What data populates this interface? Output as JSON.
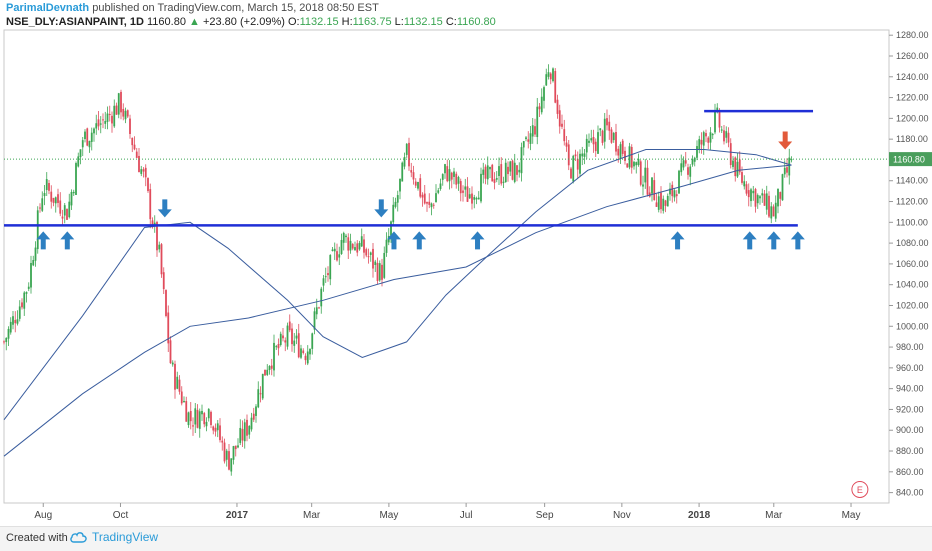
{
  "header": {
    "author": "ParimalDevnath",
    "published": "published on TradingView.com, March 15, 2018 08:50 EST",
    "symbol": "NSE_DLY:ASIANPAINT, 1D",
    "last": "1160.80",
    "change": "+23.80 (+2.09%)",
    "o_label": "O:",
    "o": "1132.15",
    "h_label": "H:",
    "h": "1163.75",
    "l_label": "L:",
    "l": "1132.15",
    "c_label": "C:",
    "c": "1160.80"
  },
  "footer": {
    "created": "Created with",
    "brand": "TradingView"
  },
  "colors": {
    "up": "#3aa552",
    "down": "#e04b5b",
    "support": "#1f2fd6",
    "ma": "#3a5d9e",
    "arrow_up": "#2d7fc1",
    "arrow_down": "#e25a3a",
    "last_price_bg": "#4a9e5c"
  },
  "chart_data": {
    "type": "candlestick",
    "x_ticks": [
      "Aug",
      "Oct",
      "2017",
      "Mar",
      "May",
      "Jul",
      "Sep",
      "Nov",
      "2018",
      "Mar",
      "May"
    ],
    "y_ticks": [
      "1280.00",
      "1260.00",
      "1240.00",
      "1220.00",
      "1200.00",
      "1180.00",
      "1160.00",
      "1140.00",
      "1120.00",
      "1100.00",
      "1080.00",
      "1060.00",
      "1040.00",
      "1020.00",
      "1000.00",
      "980.00",
      "960.00",
      "940.00",
      "920.00",
      "900.00",
      "880.00",
      "860.00",
      "840.00"
    ],
    "ylim": [
      830,
      1285
    ],
    "last_price_label": "1160.80",
    "last_price": 1160.8,
    "support_level": 1097,
    "resistance_level": 1207,
    "event_marker": "E",
    "price_path": [
      {
        "month": "2016-07-01",
        "close": 985
      },
      {
        "month": "2016-07-20",
        "close": 1040
      },
      {
        "month": "2016-08-01",
        "close": 1135
      },
      {
        "month": "2016-08-20",
        "close": 1110
      },
      {
        "month": "2016-09-01",
        "close": 1180
      },
      {
        "month": "2016-09-20",
        "close": 1200
      },
      {
        "month": "2016-10-01",
        "close": 1215
      },
      {
        "month": "2016-10-20",
        "close": 1140
      },
      {
        "month": "2016-11-01",
        "close": 1065
      },
      {
        "month": "2016-11-10",
        "close": 960
      },
      {
        "month": "2016-11-25",
        "close": 910
      },
      {
        "month": "2016-12-10",
        "close": 920
      },
      {
        "month": "2016-12-25",
        "close": 870
      },
      {
        "month": "2017-01-10",
        "close": 905
      },
      {
        "month": "2017-01-25",
        "close": 965
      },
      {
        "month": "2017-02-10",
        "close": 990
      },
      {
        "month": "2017-02-25",
        "close": 975
      },
      {
        "month": "2017-03-10",
        "close": 1040
      },
      {
        "month": "2017-03-25",
        "close": 1085
      },
      {
        "month": "2017-04-10",
        "close": 1075
      },
      {
        "month": "2017-04-25",
        "close": 1050
      },
      {
        "month": "2017-05-05",
        "close": 1110
      },
      {
        "month": "2017-05-15",
        "close": 1165
      },
      {
        "month": "2017-06-01",
        "close": 1110
      },
      {
        "month": "2017-06-15",
        "close": 1150
      },
      {
        "month": "2017-07-01",
        "close": 1125
      },
      {
        "month": "2017-07-20",
        "close": 1145
      },
      {
        "month": "2017-08-10",
        "close": 1150
      },
      {
        "month": "2017-08-25",
        "close": 1195
      },
      {
        "month": "2017-09-05",
        "close": 1255
      },
      {
        "month": "2017-09-20",
        "close": 1150
      },
      {
        "month": "2017-10-05",
        "close": 1170
      },
      {
        "month": "2017-10-20",
        "close": 1190
      },
      {
        "month": "2017-11-05",
        "close": 1165
      },
      {
        "month": "2017-11-20",
        "close": 1140
      },
      {
        "month": "2017-12-05",
        "close": 1115
      },
      {
        "month": "2017-12-20",
        "close": 1150
      },
      {
        "month": "2018-01-05",
        "close": 1180
      },
      {
        "month": "2018-01-15",
        "close": 1200
      },
      {
        "month": "2018-02-01",
        "close": 1145
      },
      {
        "month": "2018-02-15",
        "close": 1125
      },
      {
        "month": "2018-03-01",
        "close": 1110
      },
      {
        "month": "2018-03-15",
        "close": 1160.8
      }
    ],
    "ma_long": [
      {
        "month": "2016-07-01",
        "value": 875
      },
      {
        "month": "2016-09-01",
        "value": 935
      },
      {
        "month": "2016-10-20",
        "value": 975
      },
      {
        "month": "2016-11-25",
        "value": 1000
      },
      {
        "month": "2017-01-10",
        "value": 1008
      },
      {
        "month": "2017-03-10",
        "value": 1025
      },
      {
        "month": "2017-05-05",
        "value": 1045
      },
      {
        "month": "2017-07-01",
        "value": 1057
      },
      {
        "month": "2017-08-25",
        "value": 1090
      },
      {
        "month": "2017-10-20",
        "value": 1115
      },
      {
        "month": "2017-12-20",
        "value": 1135
      },
      {
        "month": "2018-02-01",
        "value": 1150
      },
      {
        "month": "2018-03-15",
        "value": 1155
      }
    ],
    "ma_short": [
      {
        "month": "2016-07-01",
        "value": 910
      },
      {
        "month": "2016-09-01",
        "value": 1010
      },
      {
        "month": "2016-10-20",
        "value": 1095
      },
      {
        "month": "2016-11-25",
        "value": 1100
      },
      {
        "month": "2016-12-25",
        "value": 1075
      },
      {
        "month": "2017-02-10",
        "value": 1025
      },
      {
        "month": "2017-03-10",
        "value": 990
      },
      {
        "month": "2017-04-10",
        "value": 970
      },
      {
        "month": "2017-05-15",
        "value": 985
      },
      {
        "month": "2017-06-15",
        "value": 1030
      },
      {
        "month": "2017-07-20",
        "value": 1070
      },
      {
        "month": "2017-08-25",
        "value": 1110
      },
      {
        "month": "2017-10-05",
        "value": 1150
      },
      {
        "month": "2017-11-20",
        "value": 1170
      },
      {
        "month": "2018-01-05",
        "value": 1170
      },
      {
        "month": "2018-02-15",
        "value": 1165
      },
      {
        "month": "2018-03-15",
        "value": 1155
      }
    ],
    "up_arrows": [
      "2016-08-01",
      "2016-08-20",
      "2017-05-05",
      "2017-05-25",
      "2017-07-10",
      "2017-12-15",
      "2018-02-10",
      "2018-03-01",
      "2018-03-20"
    ],
    "down_arrows": [
      "2016-11-05",
      "2017-04-25"
    ],
    "sell_arrow": "2018-03-10"
  }
}
